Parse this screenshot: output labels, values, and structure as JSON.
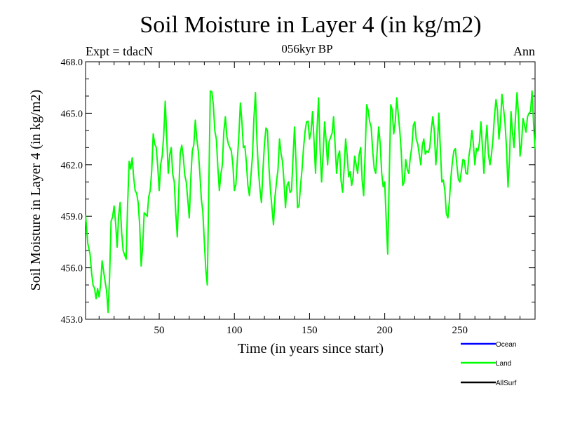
{
  "chart_data": {
    "type": "line",
    "title": "Soil Moisture in Layer 4 (in kg/m2)",
    "subtitle": "056kyr BP",
    "top_left_label": "Expt = tdacN",
    "top_right_label": "Ann",
    "xlabel": "Time (in years since start)",
    "ylabel": "Soil Moisture in Layer 4 (in kg/m2)",
    "xlim": [
      1,
      300
    ],
    "ylim": [
      453.0,
      468.0
    ],
    "x_ticks": [
      50,
      100,
      150,
      200,
      250
    ],
    "x_tick_labels": [
      "50",
      "100",
      "150",
      "200",
      "250"
    ],
    "y_ticks": [
      453,
      456,
      459,
      462,
      465,
      468
    ],
    "y_tick_labels": [
      "453.0",
      "456.0",
      "459.0",
      "462.0",
      "465.0",
      "468.0"
    ],
    "legend": [
      {
        "name": "Ocean",
        "color": "#0000ff"
      },
      {
        "name": "Land",
        "color": "#00ff00"
      },
      {
        "name": "AllSurf",
        "color": "#000000"
      }
    ],
    "series": [
      {
        "name": "Land",
        "color": "#00ff00",
        "x": [
          1,
          4,
          6,
          8,
          10,
          12,
          14,
          16,
          18,
          20,
          22,
          24,
          26,
          28,
          30,
          32,
          34,
          36,
          38,
          40,
          42,
          44,
          46,
          48,
          50,
          52,
          54,
          56,
          58,
          60,
          62,
          64,
          66,
          68,
          70,
          72,
          74,
          76,
          78,
          80,
          82,
          84,
          86,
          88,
          90,
          92,
          94,
          96,
          98,
          100,
          102,
          104,
          106,
          108,
          110,
          112,
          114,
          116,
          118,
          120,
          122,
          124,
          126,
          128,
          130,
          132,
          134,
          136,
          138,
          140,
          142,
          144,
          146,
          148,
          150,
          152,
          154,
          156,
          158,
          160,
          162,
          164,
          166,
          168,
          170,
          172,
          174,
          176,
          178,
          180,
          182,
          184,
          186,
          188,
          190,
          192,
          194,
          196,
          198,
          200,
          202,
          204,
          206,
          208,
          210,
          212,
          214,
          216,
          218,
          220,
          222,
          224,
          226,
          228,
          230,
          232,
          234,
          236,
          238,
          240,
          242,
          244,
          246,
          248,
          250,
          252,
          254,
          256,
          258,
          260,
          262,
          264,
          266,
          268,
          270,
          272,
          274,
          276,
          278,
          280,
          282,
          284,
          286,
          288,
          290,
          292,
          294,
          296,
          298,
          300
        ],
        "values": [
          459.1,
          456.8,
          455.0,
          454.2,
          454.3,
          456.4,
          455.2,
          453.4,
          458.7,
          459.6,
          457.2,
          459.8,
          457.0,
          456.5,
          462.2,
          462.4,
          460.5,
          459.8,
          456.1,
          459.2,
          459.0,
          460.5,
          463.8,
          463.0,
          460.5,
          462.5,
          465.7,
          461.5,
          463.0,
          461.0,
          457.8,
          462.7,
          462.5,
          461.0,
          458.9,
          462.8,
          464.6,
          462.8,
          460.0,
          457.5,
          455.0,
          466.3,
          465.5,
          463.5,
          460.5,
          462.0,
          464.8,
          463.2,
          462.8,
          460.5,
          462.3,
          465.6,
          463.0,
          462.1,
          460.2,
          462.5,
          466.2,
          461.7,
          459.8,
          463.2,
          464.0,
          460.5,
          458.5,
          461.0,
          463.5,
          462.2,
          459.5,
          461.0,
          460.5,
          464.2,
          459.5,
          460.8,
          463.0,
          464.5,
          463.5,
          465.1,
          461.5,
          465.9,
          461.0,
          464.5,
          462.0,
          463.6,
          464.8,
          461.5,
          462.8,
          460.4,
          463.5,
          461.3,
          460.8,
          462.5,
          461.5,
          463.0,
          460.2,
          465.5,
          464.5,
          462.8,
          461.5,
          464.2,
          461.5,
          461.0,
          456.8,
          465.5,
          463.8,
          465.9,
          464.0,
          460.8,
          462.3,
          461.5,
          463.0,
          464.5,
          463.2,
          462.0,
          463.5,
          462.8,
          463.0,
          464.8,
          462.0,
          465.0,
          461.0,
          460.5,
          458.9,
          461.2,
          462.8,
          462.0,
          461.0,
          462.3,
          461.5,
          462.5,
          464.0,
          462.0,
          462.8,
          464.5,
          461.5,
          464.3,
          462.0,
          463.5,
          465.8,
          463.5,
          466.1,
          464.5,
          460.7,
          465.1,
          463.0,
          466.2,
          462.5,
          464.7,
          463.9,
          465.0,
          466.3,
          462.9
        ]
      }
    ]
  }
}
